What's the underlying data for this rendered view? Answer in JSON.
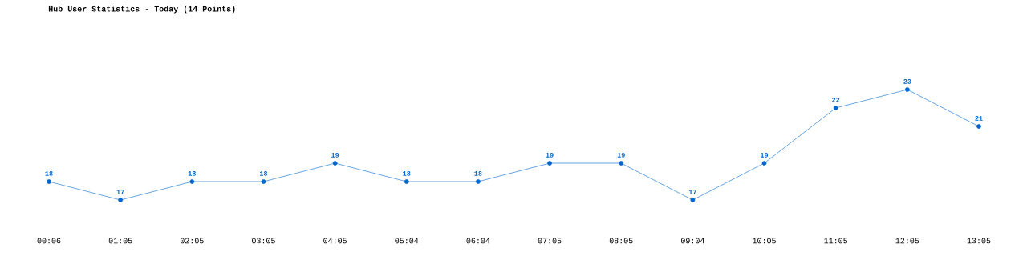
{
  "chart_data": {
    "type": "line",
    "title": "Hub User Statistics - Today (14 Points)",
    "categories": [
      "00:06",
      "01:05",
      "02:05",
      "03:05",
      "04:05",
      "05:04",
      "06:04",
      "07:05",
      "08:05",
      "09:04",
      "10:05",
      "11:05",
      "12:05",
      "13:05"
    ],
    "values": [
      18,
      17,
      18,
      18,
      19,
      18,
      18,
      19,
      19,
      17,
      19,
      22,
      23,
      21
    ],
    "color": "#0066cc",
    "marker": "circle",
    "data_labels": true
  }
}
